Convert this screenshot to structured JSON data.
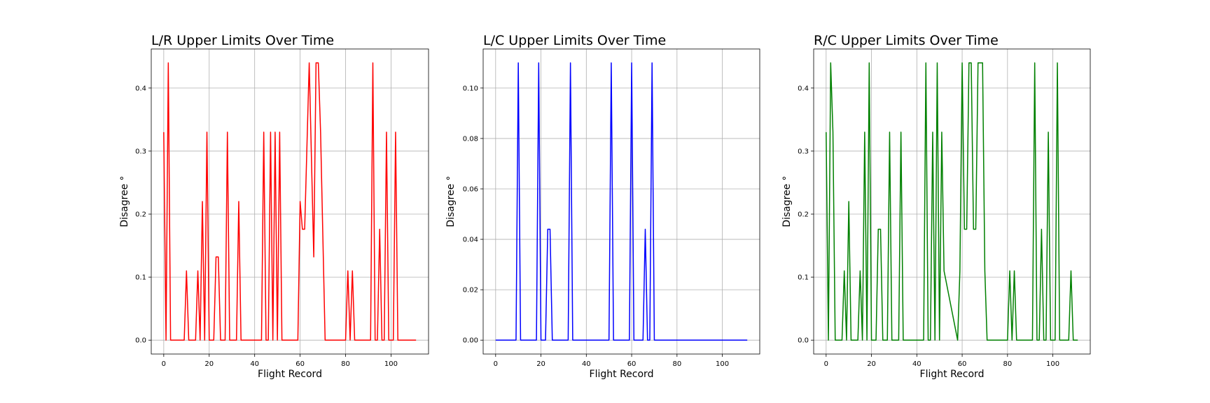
{
  "chart_data": [
    {
      "type": "line",
      "title": "L/R Upper Limits Over Time",
      "xlabel": "Flight Record",
      "ylabel": "Disagree °",
      "color": "#ff0000",
      "xlim": [
        -5.5,
        116.5
      ],
      "ylim": [
        -0.022,
        0.462
      ],
      "xticks": [
        0,
        20,
        40,
        60,
        80,
        100
      ],
      "yticks": [
        0.0,
        0.1,
        0.2,
        0.3,
        0.4
      ],
      "ytick_labels": [
        "0.0",
        "0.1",
        "0.2",
        "0.3",
        "0.4"
      ],
      "grid": true,
      "x": [
        0,
        1,
        2,
        3,
        9,
        10,
        11,
        14,
        15,
        16,
        17,
        18,
        19,
        20,
        22,
        23,
        24,
        25,
        27,
        28,
        29,
        31,
        32,
        33,
        34,
        43,
        44,
        45,
        46,
        47,
        48,
        49,
        50,
        51,
        52,
        59,
        60,
        61,
        62,
        64,
        66,
        67,
        68,
        69,
        71,
        80,
        81,
        82,
        83,
        84,
        91,
        92,
        93,
        94,
        95,
        96,
        97,
        98,
        99,
        101,
        102,
        103,
        111
      ],
      "values": [
        0.33,
        0,
        0.44,
        0,
        0,
        0.11,
        0,
        0,
        0.11,
        0,
        0.22,
        0,
        0.33,
        0,
        0,
        0.132,
        0.132,
        0,
        0,
        0.33,
        0,
        0,
        0,
        0.22,
        0,
        0,
        0.33,
        0,
        0,
        0.33,
        0,
        0.33,
        0,
        0.33,
        0,
        0,
        0.22,
        0.176,
        0.176,
        0.44,
        0.132,
        0.44,
        0.44,
        0.33,
        0,
        0,
        0.11,
        0,
        0.11,
        0,
        0,
        0.44,
        0,
        0,
        0.176,
        0,
        0,
        0.33,
        0,
        0,
        0.33,
        0,
        0
      ]
    },
    {
      "type": "line",
      "title": "L/C Upper Limits Over Time",
      "xlabel": "Flight Record",
      "ylabel": "Disagree °",
      "color": "#0000ff",
      "xlim": [
        -5.5,
        116.5
      ],
      "ylim": [
        -0.0055,
        0.1155
      ],
      "xticks": [
        0,
        20,
        40,
        60,
        80,
        100
      ],
      "yticks": [
        0.0,
        0.02,
        0.04,
        0.06,
        0.08,
        0.1
      ],
      "ytick_labels": [
        "0.00",
        "0.02",
        "0.04",
        "0.06",
        "0.08",
        "0.10"
      ],
      "grid": true,
      "x": [
        0,
        9,
        10,
        11,
        18,
        19,
        20,
        22,
        23,
        24,
        25,
        32,
        33,
        34,
        50,
        51,
        52,
        59,
        60,
        61,
        65,
        66,
        67,
        68,
        69,
        70,
        111
      ],
      "values": [
        0,
        0,
        0.11,
        0,
        0,
        0.11,
        0,
        0,
        0.044,
        0.044,
        0,
        0,
        0.11,
        0,
        0,
        0.11,
        0,
        0,
        0.11,
        0,
        0,
        0.044,
        0,
        0,
        0.11,
        0,
        0
      ]
    },
    {
      "type": "line",
      "title": "R/C Upper Limits Over Time",
      "xlabel": "Flight Record",
      "ylabel": "Disagree °",
      "color": "#008000",
      "xlim": [
        -5.5,
        116.5
      ],
      "ylim": [
        -0.022,
        0.462
      ],
      "xticks": [
        0,
        20,
        40,
        60,
        80,
        100
      ],
      "yticks": [
        0.0,
        0.1,
        0.2,
        0.3,
        0.4
      ],
      "ytick_labels": [
        "0.0",
        "0.1",
        "0.2",
        "0.3",
        "0.4"
      ],
      "grid": true,
      "x": [
        0,
        1,
        2,
        3,
        4,
        7,
        8,
        9,
        10,
        11,
        14,
        15,
        16,
        17,
        18,
        19,
        20,
        22,
        23,
        24,
        25,
        27,
        28,
        29,
        31,
        32,
        33,
        34,
        43,
        44,
        45,
        46,
        47,
        48,
        49,
        50,
        51,
        52,
        58,
        59,
        60,
        61,
        62,
        63,
        64,
        65,
        66,
        67,
        68,
        69,
        70,
        71,
        80,
        81,
        82,
        83,
        84,
        91,
        92,
        93,
        94,
        95,
        96,
        97,
        98,
        99,
        101,
        102,
        103,
        107,
        108,
        109,
        111
      ],
      "values": [
        0.33,
        0,
        0.44,
        0.33,
        0,
        0,
        0.11,
        0,
        0.22,
        0,
        0,
        0.11,
        0,
        0.33,
        0,
        0.44,
        0,
        0,
        0.176,
        0.176,
        0,
        0,
        0.33,
        0,
        0,
        0,
        0.33,
        0,
        0,
        0.44,
        0,
        0,
        0.33,
        0,
        0.44,
        0,
        0.33,
        0.11,
        0,
        0.11,
        0.44,
        0.176,
        0.176,
        0.44,
        0.44,
        0.176,
        0.176,
        0.44,
        0.44,
        0.44,
        0.11,
        0,
        0,
        0.11,
        0,
        0.11,
        0,
        0,
        0.44,
        0,
        0,
        0.176,
        0,
        0,
        0.33,
        0,
        0,
        0.44,
        0,
        0,
        0.11,
        0,
        0
      ]
    }
  ]
}
